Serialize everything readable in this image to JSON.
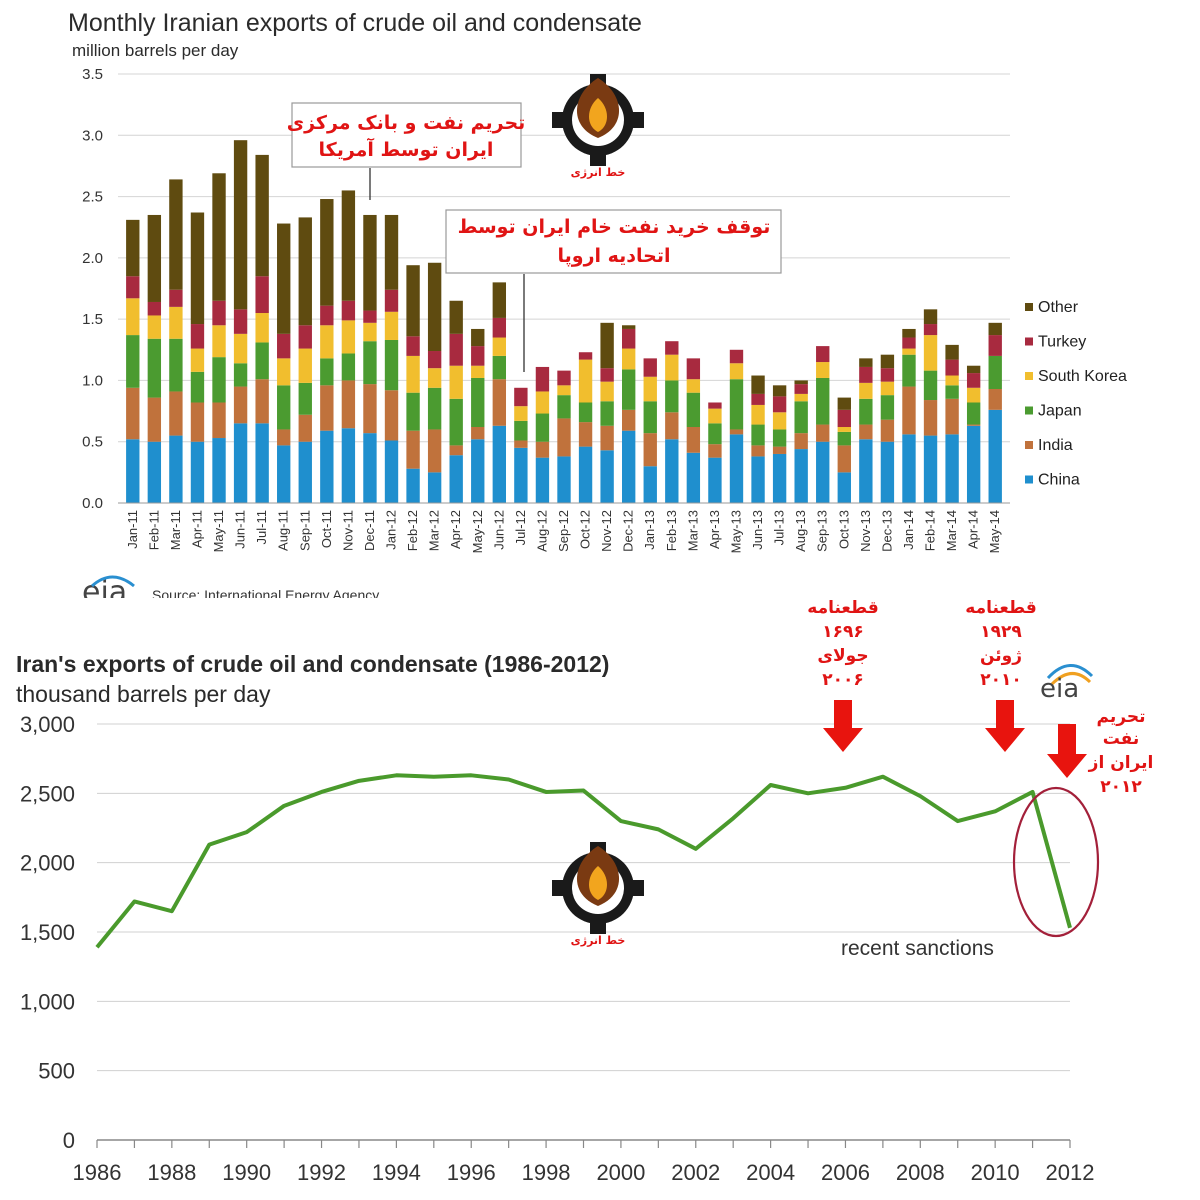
{
  "chart_data": [
    {
      "type": "bar",
      "stacked": true,
      "title": "Monthly Iranian exports of crude oil and condensate",
      "ylabel": "million barrels per day",
      "ylim": [
        0,
        3.5
      ],
      "yticks": [
        "0.0",
        "0.5",
        "1.0",
        "1.5",
        "2.0",
        "2.5",
        "3.0",
        "3.5"
      ],
      "grid": true,
      "legend_position": "right",
      "source": "Source: International Energy Agency",
      "logo_text": "eia",
      "categories": [
        "Jan-11",
        "Feb-11",
        "Mar-11",
        "Apr-11",
        "May-11",
        "Jun-11",
        "Jul-11",
        "Aug-11",
        "Sep-11",
        "Oct-11",
        "Nov-11",
        "Dec-11",
        "Jan-12",
        "Feb-12",
        "Mar-12",
        "Apr-12",
        "May-12",
        "Jun-12",
        "Jul-12",
        "Aug-12",
        "Sep-12",
        "Oct-12",
        "Nov-12",
        "Dec-12",
        "Jan-13",
        "Feb-13",
        "Mar-13",
        "Apr-13",
        "May-13",
        "Jun-13",
        "Jul-13",
        "Aug-13",
        "Sep-13",
        "Oct-13",
        "Nov-13",
        "Dec-13",
        "Jan-14",
        "Feb-14",
        "Mar-14",
        "Apr-14",
        "May-14"
      ],
      "series": [
        {
          "name": "China",
          "color": "#1f8fce",
          "values": [
            0.52,
            0.5,
            0.55,
            0.5,
            0.53,
            0.65,
            0.65,
            0.47,
            0.5,
            0.59,
            0.61,
            0.57,
            0.51,
            0.28,
            0.25,
            0.39,
            0.52,
            0.63,
            0.45,
            0.37,
            0.38,
            0.46,
            0.43,
            0.59,
            0.3,
            0.52,
            0.41,
            0.37,
            0.56,
            0.38,
            0.4,
            0.44,
            0.5,
            0.25,
            0.52,
            0.5,
            0.56,
            0.55,
            0.56,
            0.63,
            0.76
          ]
        },
        {
          "name": "India",
          "color": "#c0723c",
          "values": [
            0.42,
            0.36,
            0.36,
            0.32,
            0.29,
            0.3,
            0.36,
            0.13,
            0.22,
            0.37,
            0.39,
            0.4,
            0.41,
            0.31,
            0.35,
            0.08,
            0.1,
            0.38,
            0.06,
            0.13,
            0.31,
            0.2,
            0.2,
            0.17,
            0.27,
            0.22,
            0.21,
            0.11,
            0.04,
            0.09,
            0.06,
            0.13,
            0.14,
            0.22,
            0.12,
            0.18,
            0.39,
            0.29,
            0.29,
            0.01,
            0.17
          ]
        },
        {
          "name": "Japan",
          "color": "#4b9b30",
          "values": [
            0.43,
            0.48,
            0.43,
            0.25,
            0.37,
            0.19,
            0.3,
            0.36,
            0.26,
            0.22,
            0.22,
            0.35,
            0.41,
            0.31,
            0.34,
            0.38,
            0.4,
            0.19,
            0.16,
            0.23,
            0.19,
            0.16,
            0.2,
            0.33,
            0.26,
            0.26,
            0.28,
            0.17,
            0.41,
            0.17,
            0.14,
            0.26,
            0.38,
            0.11,
            0.21,
            0.2,
            0.26,
            0.24,
            0.11,
            0.18,
            0.27
          ]
        },
        {
          "name": "South Korea",
          "color": "#f1be2e",
          "values": [
            0.3,
            0.19,
            0.26,
            0.19,
            0.26,
            0.24,
            0.24,
            0.22,
            0.28,
            0.27,
            0.27,
            0.15,
            0.23,
            0.3,
            0.16,
            0.27,
            0.1,
            0.15,
            0.12,
            0.18,
            0.08,
            0.35,
            0.16,
            0.17,
            0.2,
            0.21,
            0.11,
            0.12,
            0.13,
            0.16,
            0.14,
            0.06,
            0.13,
            0.04,
            0.13,
            0.11,
            0.05,
            0.29,
            0.08,
            0.12,
            0.0
          ]
        },
        {
          "name": "Turkey",
          "color": "#a82a3f",
          "values": [
            0.18,
            0.11,
            0.14,
            0.2,
            0.2,
            0.2,
            0.3,
            0.2,
            0.19,
            0.16,
            0.16,
            0.1,
            0.18,
            0.16,
            0.14,
            0.26,
            0.16,
            0.16,
            0.15,
            0.2,
            0.12,
            0.06,
            0.11,
            0.16,
            0.15,
            0.11,
            0.17,
            0.05,
            0.11,
            0.09,
            0.13,
            0.08,
            0.13,
            0.14,
            0.13,
            0.11,
            0.09,
            0.09,
            0.13,
            0.12,
            0.17
          ]
        },
        {
          "name": "Other",
          "color": "#5f4b10",
          "values": [
            0.46,
            0.71,
            0.9,
            0.91,
            1.04,
            1.38,
            0.99,
            0.9,
            0.88,
            0.87,
            0.9,
            0.78,
            0.61,
            0.58,
            0.72,
            0.27,
            0.14,
            0.29,
            0.0,
            0.0,
            0.0,
            0.0,
            0.37,
            0.03,
            0.0,
            0.0,
            0.0,
            0.0,
            0.0,
            0.15,
            0.09,
            0.03,
            0.0,
            0.1,
            0.07,
            0.11,
            0.07,
            0.12,
            0.12,
            0.06,
            0.1
          ]
        }
      ],
      "annotations": [
        "تحریم نفت و بانک مرکزی",
        "ایران توسط آمریکا",
        "توقف خرید نفت خام ایران توسط",
        "اتحادیه اروپا"
      ]
    },
    {
      "type": "line",
      "title": "Iran's exports of crude oil and condensate (1986-2012)",
      "ylabel": "thousand barrels per day",
      "ylim": [
        0,
        3000
      ],
      "yticks": [
        "0",
        "500",
        "1,000",
        "1,500",
        "2,000",
        "2,500",
        "3,000"
      ],
      "xticks": [
        "1986",
        "1988",
        "1990",
        "1992",
        "1994",
        "1996",
        "1998",
        "2000",
        "2002",
        "2004",
        "2006",
        "2008",
        "2010",
        "2012"
      ],
      "series": [
        {
          "color": "#4a9a2c",
          "x": [
            1986,
            1987,
            1988,
            1989,
            1990,
            1991,
            1992,
            1993,
            1994,
            1995,
            1996,
            1997,
            1998,
            1999,
            2000,
            2001,
            2002,
            2003,
            2004,
            2005,
            2006,
            2007,
            2008,
            2009,
            2010,
            2011,
            2012
          ],
          "values": [
            1390,
            1720,
            1650,
            2130,
            2220,
            2410,
            2510,
            2590,
            2630,
            2620,
            2630,
            2600,
            2510,
            2520,
            2300,
            2240,
            2100,
            2320,
            2560,
            2500,
            2540,
            2620,
            2480,
            2300,
            2370,
            2510,
            1530
          ]
        }
      ],
      "note": "recent sanctions",
      "logo_text": "eia",
      "annotations": [
        {
          "lines": [
            "قطعنامه",
            "۱۶۹۶",
            "جولای",
            "۲۰۰۶"
          ]
        },
        {
          "lines": [
            "قطعنامه",
            "۱۹۲۹",
            "ژوئن",
            "۲۰۱۰"
          ]
        },
        {
          "lines": [
            "تحریم",
            "نفت",
            "ایران از",
            "۲۰۱۲"
          ]
        }
      ]
    }
  ],
  "watermark": {
    "text": "خط انرژی"
  }
}
